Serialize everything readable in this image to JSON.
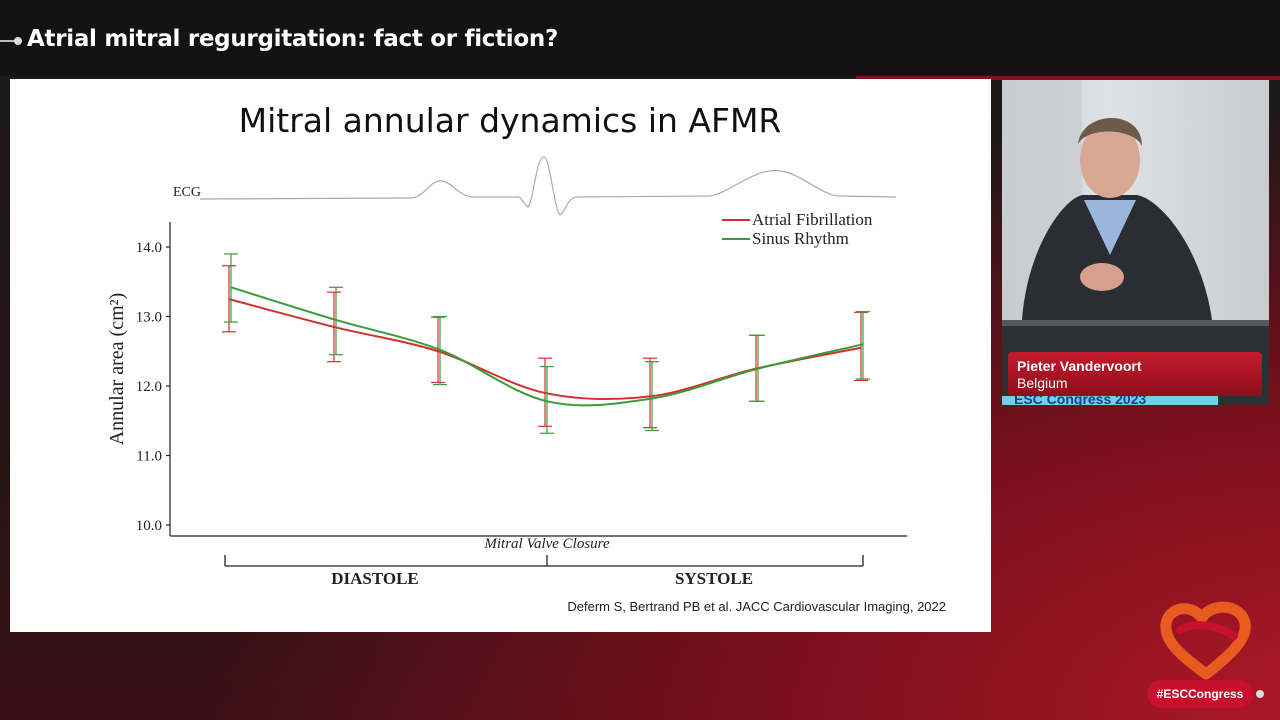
{
  "session_title": "Atrial mitral regurgitation: fact or fiction?",
  "slide": {
    "title": "Mitral annular dynamics in AFMR",
    "citation": "Deferm S, Bertrand PB et al. JACC Cardiovascular Imaging, 2022",
    "ecg_label": "ECG",
    "phases": {
      "left": "DIASTOLE",
      "right": "SYSTOLE",
      "marker": "Mitral Valve Closure"
    }
  },
  "chart_data": {
    "type": "line",
    "ylabel": "Annular area (cm²)",
    "ylim": [
      10.0,
      14.0
    ],
    "yticks": [
      "10.0",
      "11.0",
      "12.0",
      "13.0",
      "14.0"
    ],
    "x": [
      1,
      2,
      3,
      4,
      5,
      6,
      7
    ],
    "series": [
      {
        "name": "Atrial Fibrillation",
        "color": "#d0312d",
        "values": [
          13.25,
          12.85,
          12.5,
          11.9,
          11.85,
          12.25,
          12.55
        ],
        "err_low": [
          12.78,
          12.35,
          12.05,
          11.42,
          11.4,
          11.78,
          12.08
        ],
        "err_high": [
          13.73,
          13.35,
          12.99,
          12.4,
          12.4,
          12.73,
          13.06
        ]
      },
      {
        "name": "Sinus Rhythm",
        "color": "#3a9b3a",
        "values": [
          13.42,
          12.95,
          12.52,
          11.78,
          11.82,
          12.25,
          12.6
        ],
        "err_low": [
          12.92,
          12.45,
          12.02,
          11.32,
          11.36,
          11.78,
          12.1
        ],
        "err_high": [
          13.9,
          13.42,
          13.0,
          12.28,
          12.35,
          12.73,
          13.07
        ]
      }
    ]
  },
  "speaker": {
    "name": "Pieter Vandervoort",
    "country": "Belgium",
    "banner": "ESC Congress 2023"
  },
  "branding": {
    "hashtag": "#ESCCongress"
  }
}
